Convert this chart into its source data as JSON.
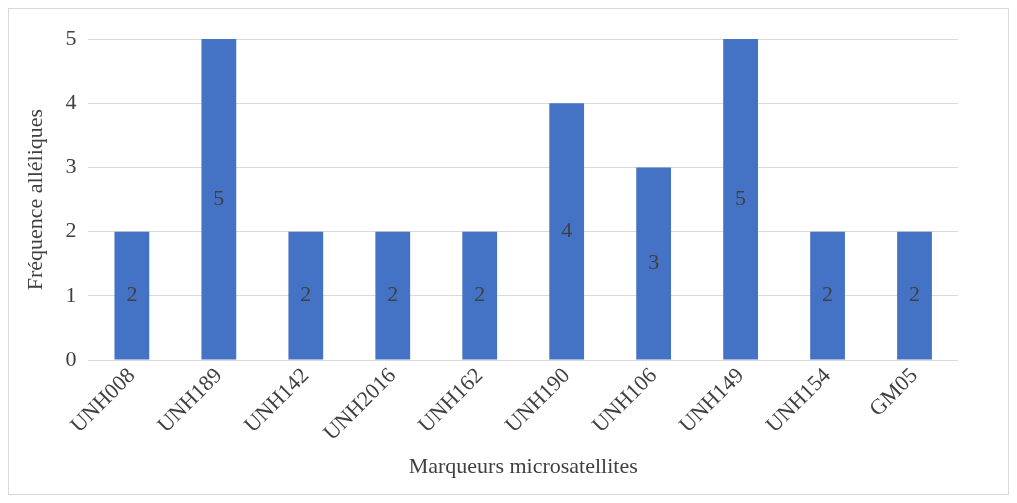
{
  "chart_data": {
    "type": "bar",
    "xlabel": "Marqueurs microsatellites",
    "ylabel": "Fréquence alléliques",
    "categories": [
      "UNH008",
      "UNH189",
      "UNH142",
      "UNH2016",
      "UNH162",
      "UNH190",
      "UNH106",
      "UNH149",
      "UNH154",
      "GM05"
    ],
    "values": [
      2,
      5,
      2,
      2,
      2,
      4,
      3,
      5,
      2,
      2
    ],
    "color": "#4472c4",
    "ylim": [
      0,
      5
    ],
    "yticks": [
      0,
      1,
      2,
      3,
      4,
      5
    ],
    "grid": "y",
    "data_labels": true
  }
}
